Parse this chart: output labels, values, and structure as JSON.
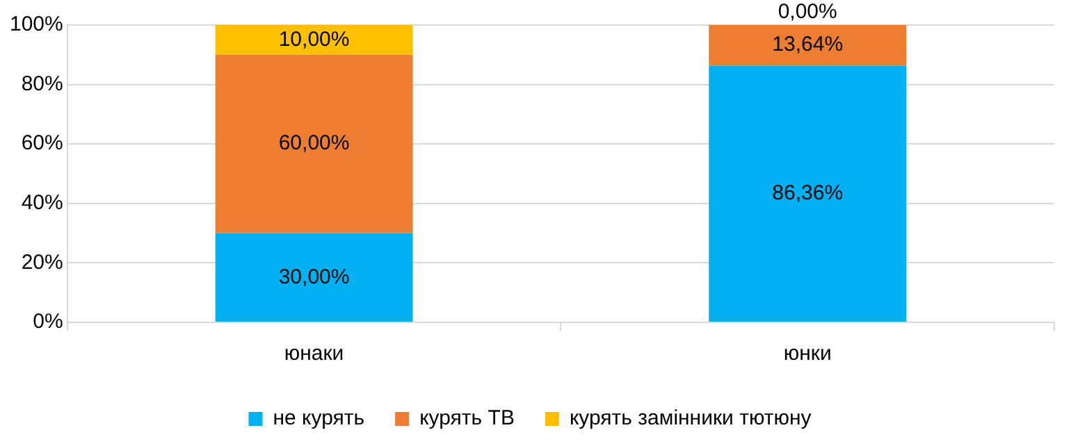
{
  "chart_data": {
    "type": "bar",
    "stacked": true,
    "categories": [
      "юнаки",
      "юнки"
    ],
    "series": [
      {
        "name": "не курять",
        "color": "#00b0f0",
        "values": [
          30,
          86.36
        ],
        "value_labels": [
          "30,00%",
          "86,36%"
        ]
      },
      {
        "name": "курять ТВ",
        "color": "#ed7d31",
        "values": [
          60,
          13.64
        ],
        "value_labels": [
          "60,00%",
          "13,64%"
        ]
      },
      {
        "name": "курять замінники тютюну",
        "color": "#ffc000",
        "values": [
          10,
          0
        ],
        "value_labels": [
          "10,00%",
          "0,00%"
        ]
      }
    ],
    "ylim": [
      0,
      100
    ],
    "yticks": [
      {
        "value": 0,
        "label": "0%"
      },
      {
        "value": 20,
        "label": "20%"
      },
      {
        "value": 40,
        "label": "40%"
      },
      {
        "value": 60,
        "label": "60%"
      },
      {
        "value": 80,
        "label": "80%"
      },
      {
        "value": 100,
        "label": "100%"
      }
    ],
    "grid": "y",
    "legend": "bottom"
  }
}
